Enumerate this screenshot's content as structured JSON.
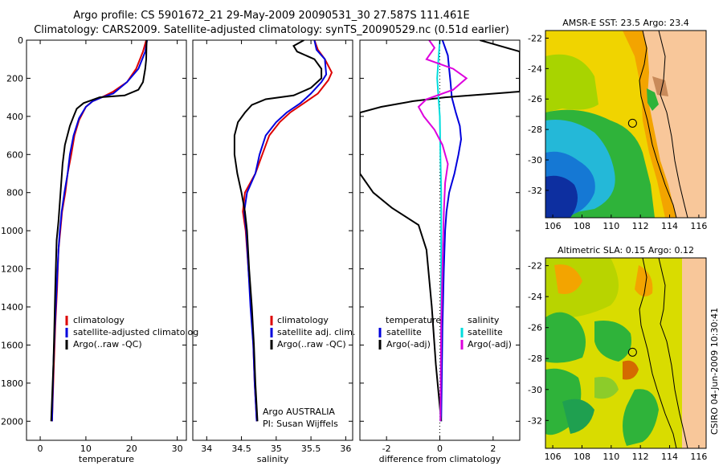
{
  "titles": {
    "line1": "Argo profile: CS 5901672_21 29-May-2009 20090531_30 27.587S 111.461E",
    "line2": "Climatology: CARS2009. Satellite-adjusted climatology: synTS_20090529.nc (0.51d earlier)"
  },
  "side_label": "CSIRO 04-Jun-2009 10:30:41",
  "colors": {
    "climatology": "#dd0000",
    "satellite": "#0000dd",
    "argo": "#000000",
    "salinity_sat": "#00dddd",
    "salinity_argo": "#dd00dd"
  },
  "chart_data": [
    {
      "type": "line",
      "id": "temperature",
      "xlabel": "temperature",
      "ylabel": "",
      "xlim": [
        -3,
        32
      ],
      "ylim": [
        2100,
        0
      ],
      "xticks": [
        "0",
        "10",
        "20",
        "30"
      ],
      "xtick_values": [
        0,
        10,
        20,
        30
      ],
      "yticks": [
        "0",
        "200",
        "400",
        "600",
        "800",
        "1000",
        "1200",
        "1400",
        "1600",
        "1800",
        "2000"
      ],
      "ytick_values": [
        0,
        200,
        400,
        600,
        800,
        1000,
        1200,
        1400,
        1600,
        1800,
        2000
      ],
      "legend": {
        "placement": "lower-middle",
        "entries": [
          "climatology",
          "satellite-adjusted climatolog",
          "Argo(..raw -QC)"
        ]
      },
      "series": [
        {
          "name": "climatology",
          "color": "#dd0000",
          "points": [
            [
              23.2,
              0
            ],
            [
              22.5,
              60
            ],
            [
              21,
              150
            ],
            [
              19,
              220
            ],
            [
              16,
              270
            ],
            [
              13.5,
              300
            ],
            [
              11.5,
              320
            ],
            [
              10,
              350
            ],
            [
              8.5,
              420
            ],
            [
              7.5,
              500
            ],
            [
              6.8,
              600
            ],
            [
              6,
              700
            ],
            [
              5.5,
              800
            ],
            [
              4.8,
              900
            ],
            [
              4.4,
              1000
            ],
            [
              4,
              1100
            ],
            [
              3.7,
              1300
            ],
            [
              3.3,
              1500
            ],
            [
              3,
              1700
            ],
            [
              2.6,
              2000
            ]
          ]
        },
        {
          "name": "satellite-adjusted climatolog",
          "color": "#0000dd",
          "points": [
            [
              23.4,
              0
            ],
            [
              23,
              60
            ],
            [
              21.5,
              150
            ],
            [
              19,
              220
            ],
            [
              16,
              280
            ],
            [
              13.5,
              300
            ],
            [
              11.5,
              320
            ],
            [
              10,
              350
            ],
            [
              8.5,
              410
            ],
            [
              7.3,
              500
            ],
            [
              6.5,
              600
            ],
            [
              6,
              700
            ],
            [
              5.3,
              800
            ],
            [
              4.7,
              900
            ],
            [
              4.3,
              1000
            ],
            [
              4,
              1100
            ],
            [
              3.6,
              1300
            ],
            [
              3.2,
              1500
            ],
            [
              2.9,
              1700
            ],
            [
              2.6,
              2000
            ]
          ]
        },
        {
          "name": "Argo(..raw -QC)",
          "color": "#000000",
          "points": [
            [
              23.3,
              0
            ],
            [
              23.2,
              100
            ],
            [
              23,
              150
            ],
            [
              22.5,
              220
            ],
            [
              21.5,
              260
            ],
            [
              18.5,
              290
            ],
            [
              13,
              300
            ],
            [
              9.5,
              330
            ],
            [
              8,
              360
            ],
            [
              7.3,
              400
            ],
            [
              6.5,
              450
            ],
            [
              5.4,
              550
            ],
            [
              4.9,
              650
            ],
            [
              4.6,
              750
            ],
            [
              4.3,
              850
            ],
            [
              4,
              950
            ],
            [
              3.6,
              1050
            ],
            [
              3.3,
              1300
            ],
            [
              3.1,
              1500
            ],
            [
              2.9,
              1700
            ],
            [
              2.4,
              2000
            ]
          ]
        }
      ]
    },
    {
      "type": "line",
      "id": "salinity",
      "xlabel": "salinity",
      "ylabel": "",
      "xlim": [
        33.8,
        36.1
      ],
      "ylim": [
        2100,
        0
      ],
      "xticks": [
        "34",
        "34.5",
        "35",
        "35.5",
        "36"
      ],
      "xtick_values": [
        34,
        34.5,
        35,
        35.5,
        36
      ],
      "legend": {
        "placement": "lower-right",
        "entries": [
          "climatology",
          "satellite adj. clim.",
          "Argo(..raw -QC)"
        ]
      },
      "annotation": {
        "line1": "Argo AUSTRALIA",
        "line2": "PI: Susan Wijffels"
      },
      "series": [
        {
          "name": "climatology",
          "color": "#dd0000",
          "points": [
            [
              35.55,
              0
            ],
            [
              35.6,
              50
            ],
            [
              35.7,
              100
            ],
            [
              35.8,
              170
            ],
            [
              35.75,
              210
            ],
            [
              35.6,
              280
            ],
            [
              35.4,
              330
            ],
            [
              35.2,
              380
            ],
            [
              35.05,
              430
            ],
            [
              34.9,
              500
            ],
            [
              34.8,
              600
            ],
            [
              34.7,
              700
            ],
            [
              34.55,
              800
            ],
            [
              34.52,
              900
            ],
            [
              34.56,
              1000
            ],
            [
              34.6,
              1200
            ],
            [
              34.64,
              1400
            ],
            [
              34.67,
              1600
            ],
            [
              34.69,
              1800
            ],
            [
              34.72,
              2000
            ]
          ]
        },
        {
          "name": "satellite adj. clim.",
          "color": "#0000dd",
          "points": [
            [
              35.55,
              0
            ],
            [
              35.58,
              50
            ],
            [
              35.7,
              100
            ],
            [
              35.72,
              180
            ],
            [
              35.65,
              220
            ],
            [
              35.5,
              280
            ],
            [
              35.35,
              330
            ],
            [
              35.15,
              380
            ],
            [
              35.0,
              430
            ],
            [
              34.85,
              500
            ],
            [
              34.76,
              600
            ],
            [
              34.7,
              700
            ],
            [
              34.58,
              800
            ],
            [
              34.54,
              900
            ],
            [
              34.57,
              1000
            ],
            [
              34.6,
              1200
            ],
            [
              34.63,
              1400
            ],
            [
              34.67,
              1600
            ],
            [
              34.69,
              1800
            ],
            [
              34.72,
              2000
            ]
          ]
        },
        {
          "name": "Argo(..raw -QC)",
          "color": "#000000",
          "points": [
            [
              35.4,
              0
            ],
            [
              35.25,
              30
            ],
            [
              35.3,
              60
            ],
            [
              35.55,
              100
            ],
            [
              35.65,
              150
            ],
            [
              35.65,
              200
            ],
            [
              35.5,
              250
            ],
            [
              35.25,
              290
            ],
            [
              34.85,
              310
            ],
            [
              34.65,
              340
            ],
            [
              34.55,
              380
            ],
            [
              34.45,
              430
            ],
            [
              34.4,
              500
            ],
            [
              34.4,
              600
            ],
            [
              34.44,
              700
            ],
            [
              34.5,
              800
            ],
            [
              34.55,
              900
            ],
            [
              34.58,
              1000
            ],
            [
              34.61,
              1200
            ],
            [
              34.65,
              1400
            ],
            [
              34.68,
              1600
            ],
            [
              34.7,
              1800
            ],
            [
              34.73,
              2000
            ]
          ]
        }
      ]
    },
    {
      "type": "line",
      "id": "difference",
      "xlabel": "difference from climatology",
      "ylabel": "",
      "xlim": [
        -3,
        3
      ],
      "ylim": [
        2100,
        0
      ],
      "xticks": [
        "-2",
        "0",
        "2"
      ],
      "xtick_values": [
        -2,
        0,
        2
      ],
      "legend": {
        "placement": "lower-middle",
        "headers": [
          "temperature",
          "salinity"
        ],
        "entries": [
          "satellite",
          "Argo(-adj)",
          "satellite",
          "Argo(-adj)"
        ]
      },
      "series": [
        {
          "name": "satellite",
          "color": "#0000dd",
          "points": [
            [
              0.1,
              0
            ],
            [
              0.3,
              80
            ],
            [
              0.35,
              150
            ],
            [
              0.4,
              220
            ],
            [
              0.45,
              300
            ],
            [
              0.6,
              380
            ],
            [
              0.75,
              450
            ],
            [
              0.8,
              520
            ],
            [
              0.7,
              600
            ],
            [
              0.55,
              700
            ],
            [
              0.35,
              800
            ],
            [
              0.25,
              900
            ],
            [
              0.2,
              1000
            ],
            [
              0.15,
              1200
            ],
            [
              0.1,
              1500
            ],
            [
              0.05,
              2000
            ]
          ]
        },
        {
          "name": "Argo(-adj)",
          "color": "#000000",
          "points": [
            [
              1.5,
              0
            ],
            [
              2,
              20
            ],
            [
              3,
              60
            ],
            [
              3,
              270
            ],
            [
              0.2,
              300
            ],
            [
              -1,
              320
            ],
            [
              -2.2,
              350
            ],
            [
              -3,
              380
            ],
            [
              -3,
              700
            ],
            [
              -2.5,
              800
            ],
            [
              -1.8,
              880
            ],
            [
              -0.8,
              970
            ],
            [
              -0.5,
              1100
            ],
            [
              -0.3,
              1400
            ],
            [
              -0.15,
              1700
            ],
            [
              0.05,
              2000
            ]
          ]
        },
        {
          "name": "satellite",
          "color": "#00dddd",
          "points": [
            [
              0,
              0
            ],
            [
              -0.05,
              100
            ],
            [
              -0.1,
              200
            ],
            [
              -0.05,
              300
            ],
            [
              0,
              400
            ],
            [
              0.02,
              600
            ],
            [
              0.05,
              800
            ],
            [
              0.05,
              1000
            ],
            [
              0.05,
              1500
            ],
            [
              0.02,
              2000
            ]
          ]
        },
        {
          "name": "Argo(-adj)",
          "color": "#dd00dd",
          "points": [
            [
              -0.4,
              0
            ],
            [
              -0.2,
              40
            ],
            [
              -0.5,
              100
            ],
            [
              0.5,
              150
            ],
            [
              1,
              200
            ],
            [
              0.5,
              260
            ],
            [
              -0.5,
              310
            ],
            [
              -0.8,
              350
            ],
            [
              -0.6,
              400
            ],
            [
              -0.2,
              470
            ],
            [
              0.1,
              550
            ],
            [
              0.3,
              650
            ],
            [
              0.2,
              750
            ],
            [
              0.15,
              900
            ],
            [
              0.1,
              1200
            ],
            [
              0.05,
              1500
            ],
            [
              0.02,
              2000
            ]
          ]
        }
      ]
    }
  ],
  "maps": [
    {
      "id": "sst",
      "title": "AMSR-E SST: 23.5 Argo: 23.4",
      "xticks": [
        "106",
        "108",
        "110",
        "112",
        "114",
        "116"
      ],
      "yticks": [
        "-22",
        "-24",
        "-26",
        "-28",
        "-30",
        "-32"
      ],
      "xlim": [
        105.5,
        116.5
      ],
      "ylim": [
        -33.8,
        -21.5
      ],
      "float": {
        "lon": 111.46,
        "lat": -27.59
      }
    },
    {
      "id": "sla",
      "title": "Altimetric SLA: 0.15 Argo: 0.12",
      "xticks": [
        "106",
        "108",
        "110",
        "112",
        "114",
        "116"
      ],
      "yticks": [
        "-22",
        "-24",
        "-26",
        "-28",
        "-30",
        "-32"
      ],
      "xlim": [
        105.5,
        116.5
      ],
      "ylim": [
        -33.8,
        -21.5
      ],
      "float": {
        "lon": 111.46,
        "lat": -27.59
      }
    }
  ]
}
